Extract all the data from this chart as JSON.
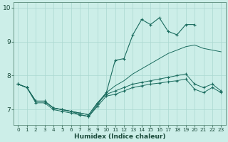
{
  "xlabel": "Humidex (Indice chaleur)",
  "bg_color": "#cceee8",
  "grid_color": "#aad8d0",
  "line_color": "#1a6b5e",
  "x": [
    0,
    1,
    2,
    3,
    4,
    5,
    6,
    7,
    8,
    9,
    10,
    11,
    12,
    13,
    14,
    15,
    16,
    17,
    18,
    19,
    20,
    21,
    22,
    23
  ],
  "line_max": [
    7.75,
    7.65,
    7.25,
    7.25,
    7.05,
    7.0,
    6.95,
    6.85,
    6.8,
    7.15,
    7.5,
    8.45,
    8.5,
    9.2,
    9.65,
    9.5,
    9.7,
    9.3,
    9.2,
    9.5,
    9.5,
    null,
    null,
    null
  ],
  "line_avg_high": [
    7.75,
    7.65,
    7.25,
    7.25,
    7.05,
    7.0,
    6.95,
    6.9,
    6.85,
    7.2,
    7.5,
    7.7,
    7.85,
    8.05,
    8.2,
    8.35,
    8.5,
    8.65,
    8.75,
    8.85,
    8.9,
    8.8,
    8.75,
    8.7
  ],
  "line_avg_low": [
    7.75,
    7.65,
    7.25,
    7.25,
    7.05,
    7.0,
    6.95,
    6.9,
    6.85,
    7.2,
    7.45,
    7.55,
    7.65,
    7.75,
    7.8,
    7.85,
    7.9,
    7.95,
    8.0,
    8.05,
    7.75,
    7.65,
    7.75,
    7.55
  ],
  "line_min": [
    7.75,
    7.65,
    7.2,
    7.2,
    7.0,
    6.95,
    6.9,
    6.85,
    6.8,
    7.1,
    7.4,
    7.45,
    7.55,
    7.65,
    7.7,
    7.75,
    7.78,
    7.82,
    7.85,
    7.9,
    7.6,
    7.5,
    7.65,
    7.5
  ],
  "ylim": [
    6.55,
    10.15
  ],
  "yticks": [
    7,
    8,
    9,
    10
  ],
  "xticks": [
    0,
    1,
    2,
    3,
    4,
    5,
    6,
    7,
    8,
    9,
    10,
    11,
    12,
    13,
    14,
    15,
    16,
    17,
    18,
    19,
    20,
    21,
    22,
    23
  ]
}
